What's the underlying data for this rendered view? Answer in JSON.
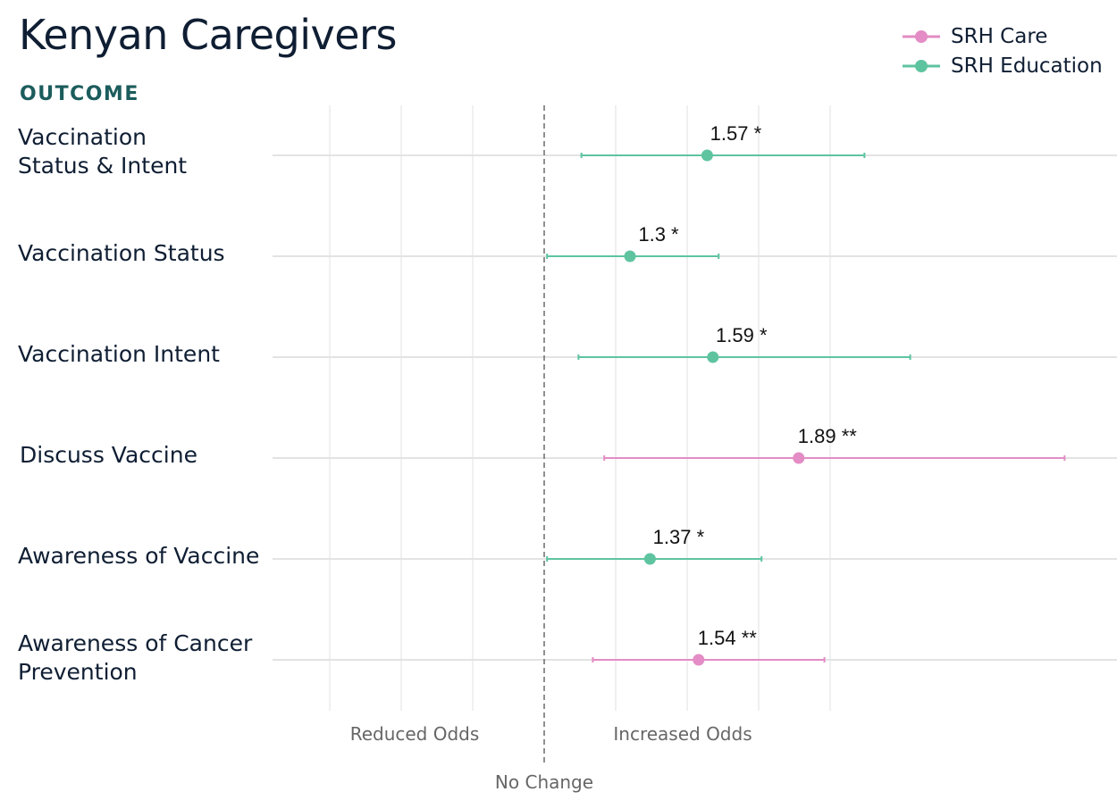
{
  "title": "Kenyan Caregivers",
  "column_header": "OUTCOME",
  "legend": [
    {
      "label": "SRH Care",
      "color": "#e38cc5"
    },
    {
      "label": "SRH Education",
      "color": "#5ec4a0"
    }
  ],
  "chart_data": {
    "type": "scatter",
    "subtype": "forest-plot",
    "title": "Kenyan Caregivers",
    "x_reference": 1.0,
    "x_range": [
      0.5,
      2.5
    ],
    "grid": true,
    "legend_position": "top-right",
    "annotations": [
      "Reduced Odds",
      "Increased Odds",
      "No Change"
    ],
    "rows": [
      {
        "label": "Vaccination\nStatus & Intent",
        "series": "SRH Education",
        "estimate": 1.57,
        "ci_low": 1.13,
        "ci_high": 2.12,
        "text": "1.57 *"
      },
      {
        "label": "Vaccination Status",
        "series": "SRH Education",
        "estimate": 1.3,
        "ci_low": 1.01,
        "ci_high": 1.61,
        "text": "1.3 *"
      },
      {
        "label": "Vaccination Intent",
        "series": "SRH Education",
        "estimate": 1.59,
        "ci_low": 1.12,
        "ci_high": 2.28,
        "text": "1.59 *"
      },
      {
        "label": "Discuss Vaccine",
        "series": "SRH Care",
        "estimate": 1.89,
        "ci_low": 1.21,
        "ci_high": 2.82,
        "text": "1.89 **"
      },
      {
        "label": "Awareness of Vaccine",
        "series": "SRH Education",
        "estimate": 1.37,
        "ci_low": 1.01,
        "ci_high": 1.76,
        "text": "1.37 *"
      },
      {
        "label": "Awareness of Cancer\nPrevention",
        "series": "SRH Care",
        "estimate": 1.54,
        "ci_low": 1.17,
        "ci_high": 1.98,
        "text": "1.54 **"
      }
    ]
  }
}
